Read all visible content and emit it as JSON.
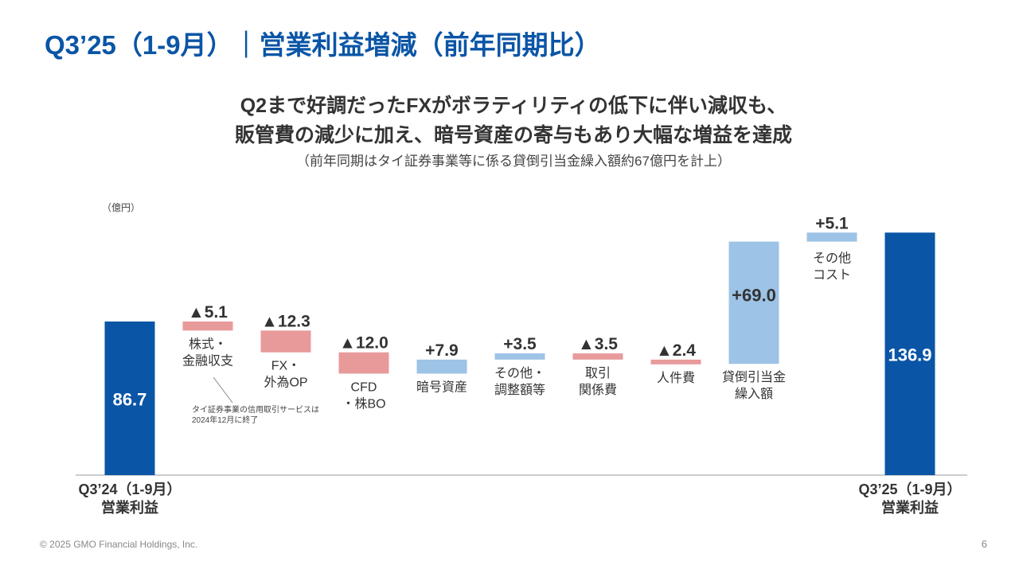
{
  "title": "Q3’25（1-9月）｜営業利益増減（前年同期比）",
  "subtitle_line1": "Q2まで好調だったFXがボラティリティの低下に伴い減収も、",
  "subtitle_line2": "販管費の減少に加え、暗号資産の寄与もあり大幅な増益を達成",
  "note": "（前年同期はタイ証券事業等に係る貸倒引当金繰入額約67億円を計上）",
  "annotation_line1": "タイ証券事業の信用取引サービスは",
  "annotation_line2": "2024年12月に終了",
  "footer": "© 2025 GMO Financial Holdings, Inc.",
  "page_number": "6",
  "colors": {
    "total": "#0a55a6",
    "increase": "#9dc3e6",
    "decrease": "#e89a9a",
    "title": "#0a55a6"
  },
  "chart_data": {
    "type": "bar",
    "subtype": "waterfall",
    "unit_label": "（億円）",
    "ylim": [
      0,
      140
    ],
    "items": [
      {
        "label": [
          "Q3’24（1-9月）",
          "営業利益"
        ],
        "value": 86.7,
        "kind": "total",
        "value_label": "86.7"
      },
      {
        "label": [
          "株式・",
          "金融収支"
        ],
        "value": -5.1,
        "kind": "delta",
        "value_label": "▲5.1"
      },
      {
        "label": [
          "FX・",
          "外為OP"
        ],
        "value": -12.3,
        "kind": "delta",
        "value_label": "▲12.3"
      },
      {
        "label": [
          "CFD",
          "・株BO"
        ],
        "value": -12.0,
        "kind": "delta",
        "value_label": "▲12.0"
      },
      {
        "label": [
          "暗号資産"
        ],
        "value": 7.9,
        "kind": "delta",
        "value_label": "+7.9"
      },
      {
        "label": [
          "その他・",
          "調整額等"
        ],
        "value": 3.5,
        "kind": "delta",
        "value_label": "+3.5"
      },
      {
        "label": [
          "取引",
          "関係費"
        ],
        "value": -3.5,
        "kind": "delta",
        "value_label": "▲3.5"
      },
      {
        "label": [
          "人件費"
        ],
        "value": -2.4,
        "kind": "delta",
        "value_label": "▲2.4"
      },
      {
        "label": [
          "貸倒引当金",
          "繰入額"
        ],
        "value": 69.0,
        "kind": "delta",
        "value_label": "+69.0"
      },
      {
        "label": [
          "その他",
          "コスト"
        ],
        "value": 5.1,
        "kind": "delta",
        "value_label": "+5.1"
      },
      {
        "label": [
          "Q3’25（1-9月）",
          "営業利益"
        ],
        "value": 136.9,
        "kind": "total",
        "value_label": "136.9"
      }
    ]
  }
}
